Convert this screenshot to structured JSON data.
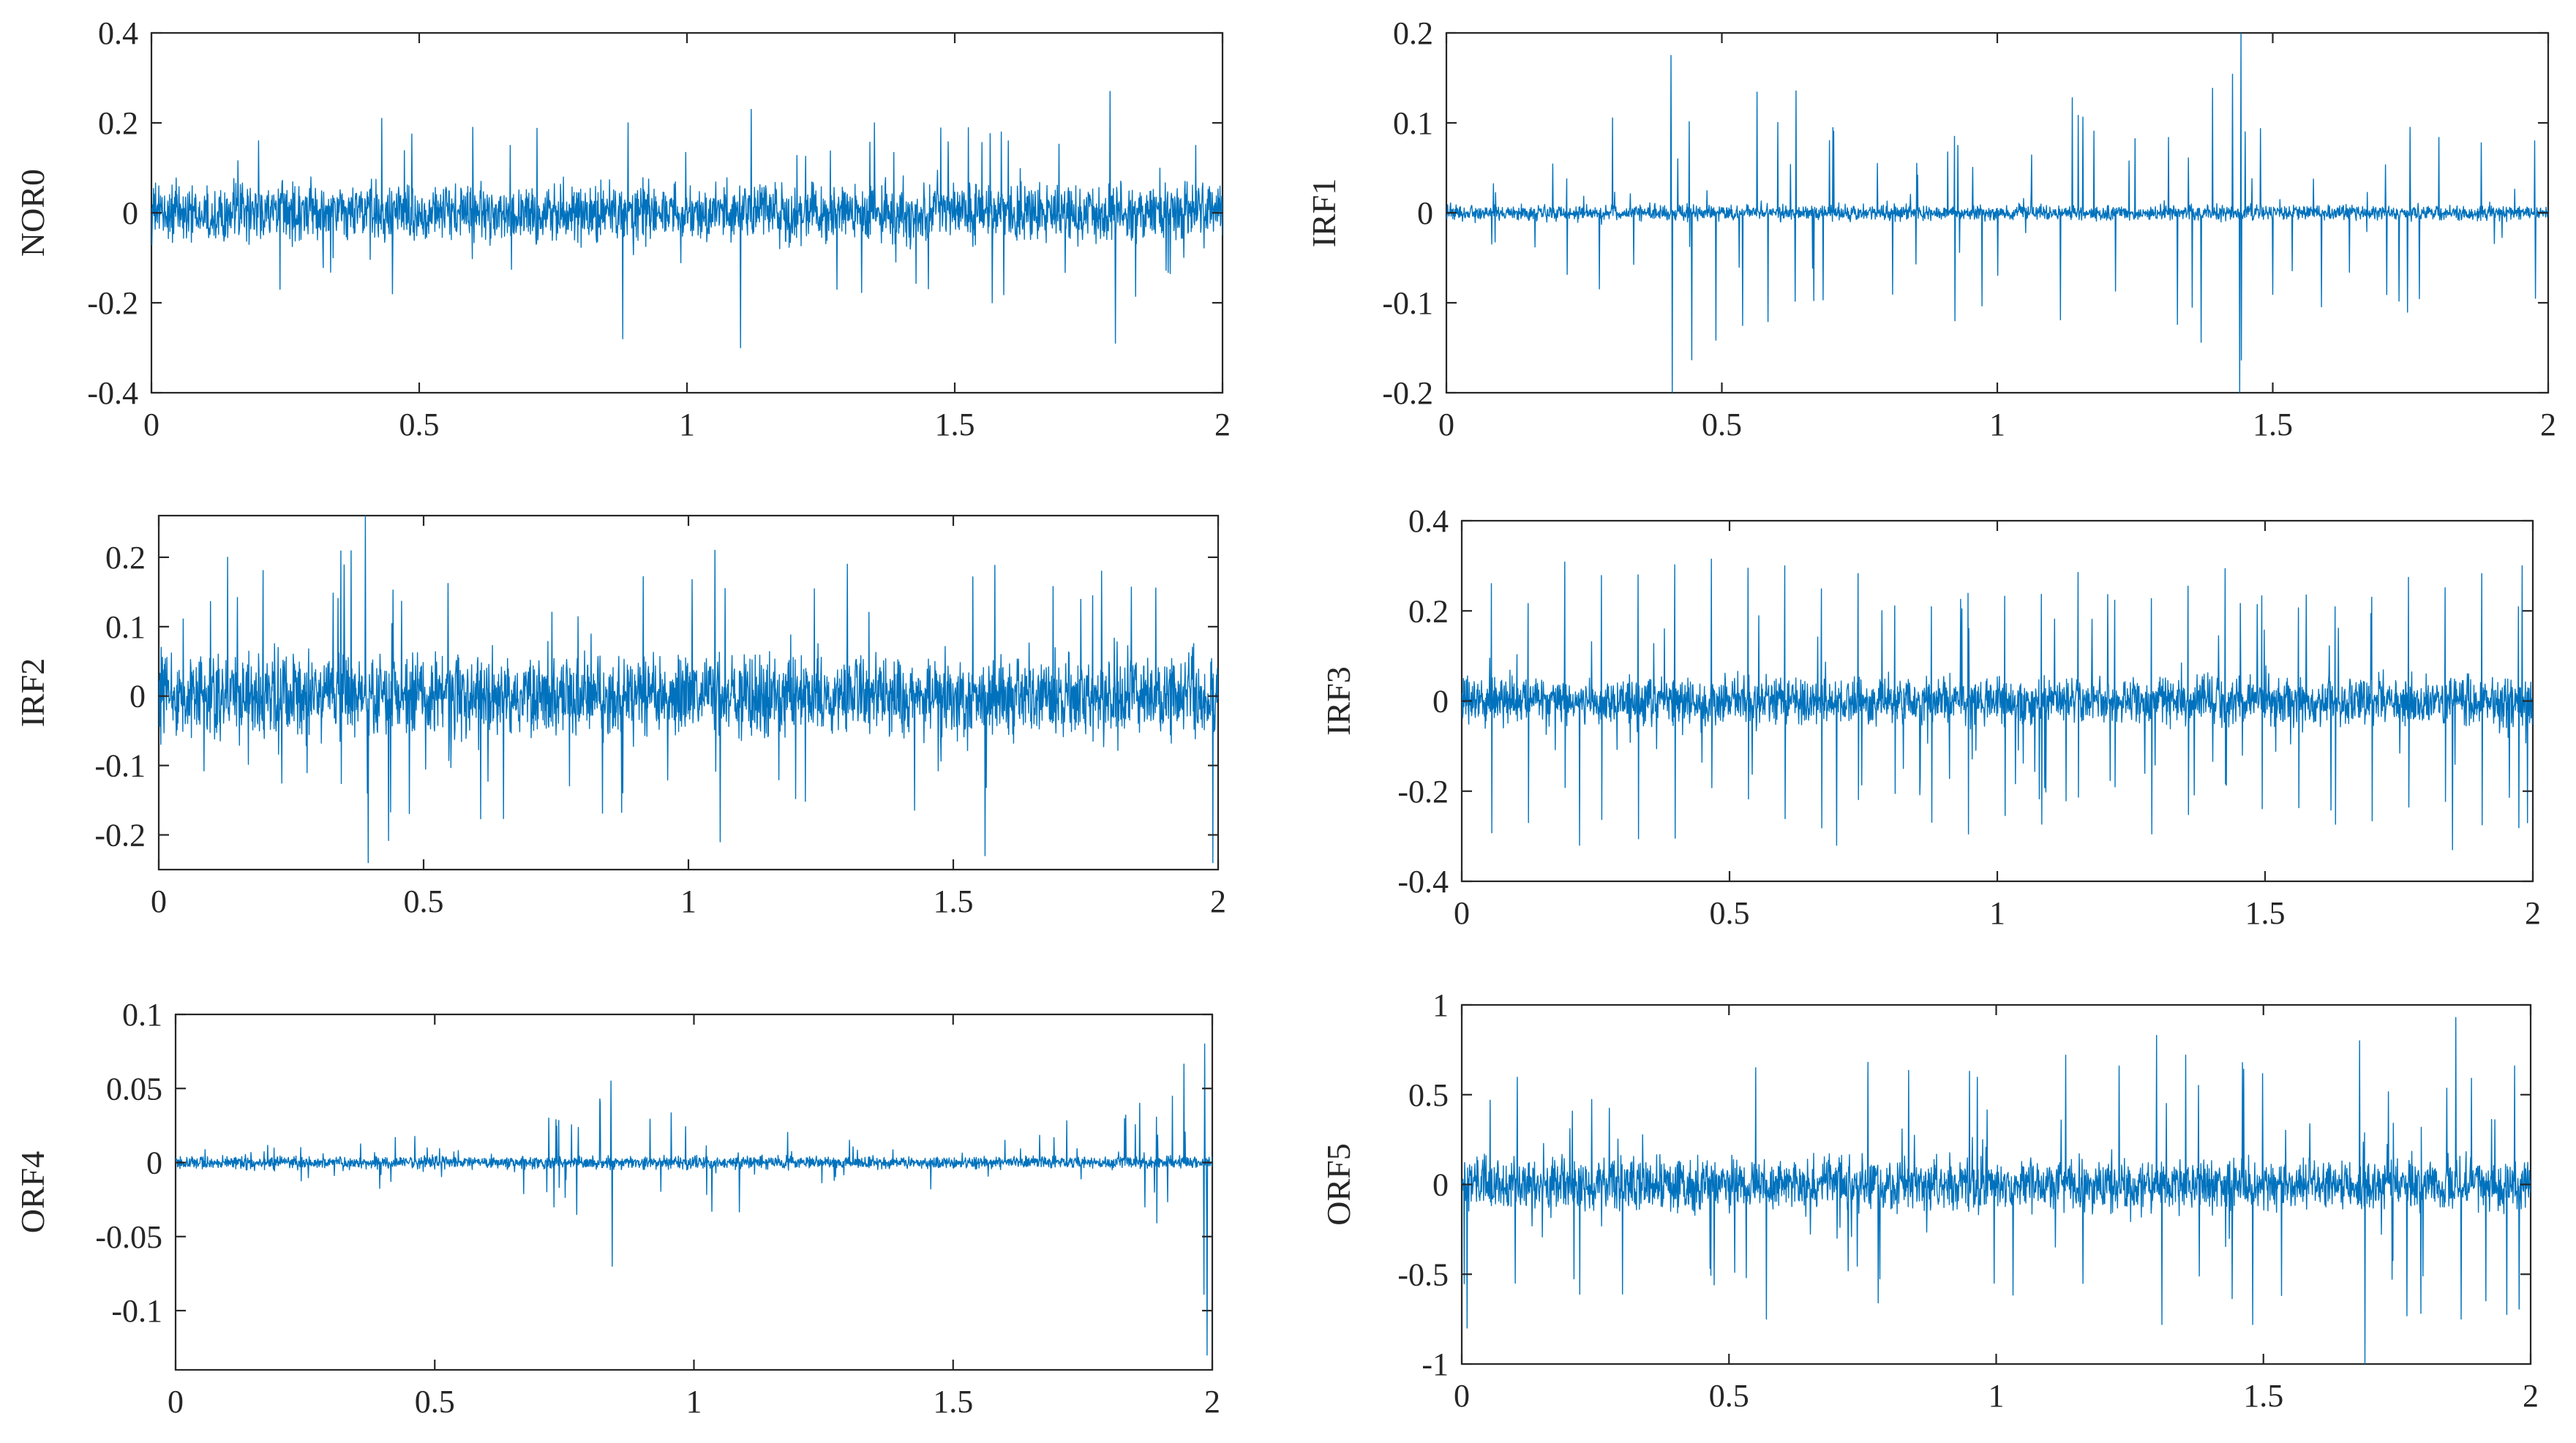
{
  "figure": {
    "line_color": "#0072BD",
    "panel_count": 6
  },
  "chart_data": [
    {
      "type": "line",
      "title": "",
      "xlabel": "",
      "ylabel": "NOR0",
      "xlim": [
        0,
        2
      ],
      "ylim": [
        -0.4,
        0.4
      ],
      "xticks": [
        0,
        0.5,
        1,
        1.5,
        2
      ],
      "xtick_labels": [
        "0",
        "0.5",
        "1",
        "1.5",
        "2"
      ],
      "yticks": [
        -0.4,
        -0.2,
        0,
        0.2,
        0.4
      ],
      "ytick_labels": [
        "-0.4",
        "-0.2",
        "0",
        "0.2",
        "0.4"
      ],
      "grid": false,
      "series": [
        {
          "color": "#0072BD",
          "baseline_amplitude": 0.09,
          "envelope": [
            [
              0,
              0.11
            ],
            [
              0.43,
              0.2
            ],
            [
              0.88,
              0.27
            ],
            [
              1.11,
              0.3
            ],
            [
              1.35,
              0.2
            ],
            [
              1.79,
              0.28
            ],
            [
              2,
              0.11
            ]
          ],
          "spikes": [
            [
              0.2,
              0.16
            ],
            [
              0.24,
              -0.17
            ],
            [
              0.43,
              0.21
            ],
            [
              0.45,
              -0.18
            ],
            [
              0.6,
              0.19
            ],
            [
              0.67,
              0.15
            ],
            [
              0.88,
              -0.28
            ],
            [
              0.89,
              0.2
            ],
            [
              1.1,
              -0.3
            ],
            [
              1.12,
              0.23
            ],
            [
              1.28,
              -0.17
            ],
            [
              1.35,
              0.2
            ],
            [
              1.57,
              -0.2
            ],
            [
              1.6,
              0.16
            ],
            [
              1.79,
              0.27
            ],
            [
              1.8,
              -0.29
            ],
            [
              1.95,
              0.15
            ]
          ]
        }
      ]
    },
    {
      "type": "line",
      "title": "",
      "xlabel": "",
      "ylabel": "IRF1",
      "xlim": [
        0,
        2
      ],
      "ylim": [
        -0.2,
        0.2
      ],
      "xticks": [
        0,
        0.5,
        1,
        1.5,
        2
      ],
      "xtick_labels": [
        "0",
        "0.5",
        "1",
        "1.5",
        "2"
      ],
      "yticks": [
        -0.2,
        -0.1,
        0,
        0.1,
        0.2
      ],
      "ytick_labels": [
        "-0.2",
        "-0.1",
        "0",
        "0.1",
        "0.2"
      ],
      "grid": false,
      "series": [
        {
          "color": "#0072BD",
          "baseline_amplitude": 0.012,
          "envelope": [
            [
              0,
              0.012
            ],
            [
              0.41,
              0.2
            ],
            [
              0.92,
              0.12
            ],
            [
              1.44,
              0.2
            ],
            [
              1.98,
              0.09
            ],
            [
              2,
              0.012
            ]
          ],
          "spikes": [
            [
              0.408,
              0.175
            ],
            [
              0.41,
              -0.2
            ],
            [
              0.42,
              0.06
            ],
            [
              0.922,
              0.085
            ],
            [
              0.923,
              -0.12
            ],
            [
              1.44,
              -0.2
            ],
            [
              1.442,
              0.2
            ],
            [
              1.45,
              0.09
            ],
            [
              1.975,
              0.08
            ],
            [
              1.977,
              -0.095
            ]
          ]
        }
      ]
    },
    {
      "type": "line",
      "title": "",
      "xlabel": "",
      "ylabel": "IRF2",
      "xlim": [
        0,
        2
      ],
      "ylim": [
        -0.25,
        0.26
      ],
      "xticks": [
        0,
        0.5,
        1,
        1.5,
        2
      ],
      "xtick_labels": [
        "0",
        "0.5",
        "1",
        "1.5",
        "2"
      ],
      "yticks": [
        -0.2,
        -0.1,
        0,
        0.1,
        0.2
      ],
      "ytick_labels": [
        "-0.2",
        "-0.1",
        "0",
        "0.1",
        "0.2"
      ],
      "grid": false,
      "series": [
        {
          "color": "#0072BD",
          "baseline_amplitude": 0.085,
          "envelope": [
            [
              0,
              0.17
            ],
            [
              0.39,
              0.26
            ],
            [
              1.0,
              0.2
            ],
            [
              1.5,
              0.24
            ],
            [
              2,
              0.17
            ]
          ],
          "spikes": [
            [
              0.13,
              0.2
            ],
            [
              0.39,
              0.26
            ],
            [
              0.395,
              -0.24
            ],
            [
              1.05,
              0.21
            ],
            [
              1.06,
              -0.21
            ],
            [
              1.3,
              0.19
            ],
            [
              1.56,
              -0.23
            ],
            [
              1.78,
              0.18
            ],
            [
              1.99,
              -0.24
            ]
          ]
        }
      ]
    },
    {
      "type": "line",
      "title": "",
      "xlabel": "",
      "ylabel": "IRF3",
      "xlim": [
        0,
        2
      ],
      "ylim": [
        -0.4,
        0.4
      ],
      "xticks": [
        0,
        0.5,
        1,
        1.5,
        2
      ],
      "xtick_labels": [
        "0",
        "0.5",
        "1",
        "1.5",
        "2"
      ],
      "yticks": [
        -0.4,
        -0.2,
        0,
        0.2,
        0.4
      ],
      "ytick_labels": [
        "-0.4",
        "-0.2",
        "0",
        "0.2",
        "0.4"
      ],
      "grid": false,
      "series": [
        {
          "color": "#0072BD",
          "baseline_amplitude": 0.075,
          "envelope": [
            [
              0,
              0.14
            ],
            [
              1,
              0.3
            ],
            [
              2,
              0.3
            ]
          ],
          "impulse_period": 0.0685,
          "impulse_first": 0.055,
          "impulse_pos_range": [
            0.2,
            0.32
          ],
          "impulse_neg_range": [
            -0.32,
            -0.18
          ],
          "spikes": [
            [
              0.7,
              0.32
            ],
            [
              0.22,
              -0.32
            ],
            [
              0.7,
              -0.32
            ],
            [
              1.85,
              -0.33
            ],
            [
              1.98,
              0.3
            ],
            [
              1.99,
              -0.27
            ]
          ]
        }
      ]
    },
    {
      "type": "line",
      "title": "",
      "xlabel": "",
      "ylabel": "ORF4",
      "xlim": [
        0,
        2
      ],
      "ylim": [
        -0.14,
        0.1
      ],
      "xticks": [
        0,
        0.5,
        1,
        1.5,
        2
      ],
      "xtick_labels": [
        "0",
        "0.5",
        "1",
        "1.5",
        "2"
      ],
      "yticks": [
        -0.1,
        -0.05,
        0,
        0.05,
        0.1
      ],
      "ytick_labels": [
        "-0.1",
        "-0.05",
        "0",
        "0.05",
        "0.1"
      ],
      "grid": false,
      "series": [
        {
          "color": "#0072BD",
          "baseline_amplitude": 0.006,
          "envelope": [
            [
              0,
              0.01
            ],
            [
              0.72,
              0.03
            ],
            [
              0.84,
              0.07
            ],
            [
              1.3,
              0.015
            ],
            [
              1.85,
              0.04
            ],
            [
              2,
              0.13
            ]
          ],
          "spikes": [
            [
              0.72,
              0.03
            ],
            [
              0.73,
              -0.03
            ],
            [
              0.84,
              0.055
            ],
            [
              0.842,
              -0.07
            ],
            [
              1.3,
              0.015
            ],
            [
              1.6,
              0.015
            ],
            [
              1.86,
              0.04
            ],
            [
              1.87,
              -0.03
            ],
            [
              1.985,
              0.08
            ],
            [
              1.99,
              -0.13
            ]
          ]
        }
      ]
    },
    {
      "type": "line",
      "title": "",
      "xlabel": "",
      "ylabel": "ORF5",
      "xlim": [
        0,
        2
      ],
      "ylim": [
        -1,
        1
      ],
      "xticks": [
        0,
        0.5,
        1,
        1.5,
        2
      ],
      "xtick_labels": [
        "0",
        "0.5",
        "1",
        "1.5",
        "2"
      ],
      "yticks": [
        -1,
        -0.5,
        0,
        0.5,
        1
      ],
      "ytick_labels": [
        "-1",
        "-0.5",
        "0",
        "0.5",
        "1"
      ],
      "grid": false,
      "series": [
        {
          "color": "#0072BD",
          "baseline_amplitude": 0.2,
          "envelope": [
            [
              0,
              0.7
            ],
            [
              1,
              0.8
            ],
            [
              2,
              0.95
            ]
          ],
          "spikes": [
            [
              0.01,
              0.62
            ],
            [
              0.01,
              -0.8
            ],
            [
              0.1,
              -0.55
            ],
            [
              0.55,
              0.65
            ],
            [
              0.57,
              -0.75
            ],
            [
              0.76,
              0.68
            ],
            [
              0.95,
              0.63
            ],
            [
              1.13,
              0.72
            ],
            [
              1.3,
              0.83
            ],
            [
              1.31,
              -0.78
            ],
            [
              1.48,
              -0.78
            ],
            [
              1.68,
              0.8
            ],
            [
              1.69,
              -1.0
            ],
            [
              1.86,
              0.93
            ],
            [
              1.87,
              -0.75
            ],
            [
              1.97,
              0.66
            ]
          ]
        }
      ]
    }
  ]
}
